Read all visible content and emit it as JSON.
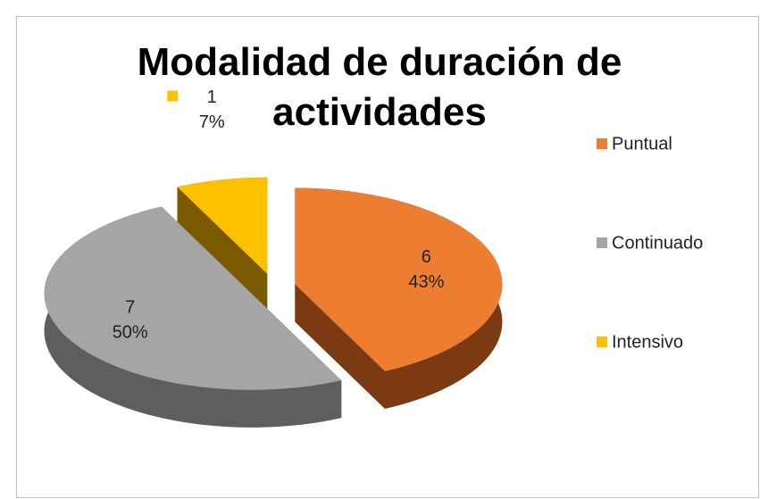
{
  "chart_data": {
    "type": "pie",
    "title": "Modalidad de duración de actividades",
    "categories": [
      "Puntual",
      "Continuado",
      "Intensivo"
    ],
    "values": [
      6,
      7,
      1
    ],
    "percent_labels": [
      "43%",
      "50%",
      "7%"
    ],
    "colors": [
      "#ED7D31",
      "#A5A5A5",
      "#FFC000"
    ],
    "side_colors": [
      "#7B3A12",
      "#5E5E5E",
      "#7A5A00"
    ],
    "legend": "right"
  }
}
